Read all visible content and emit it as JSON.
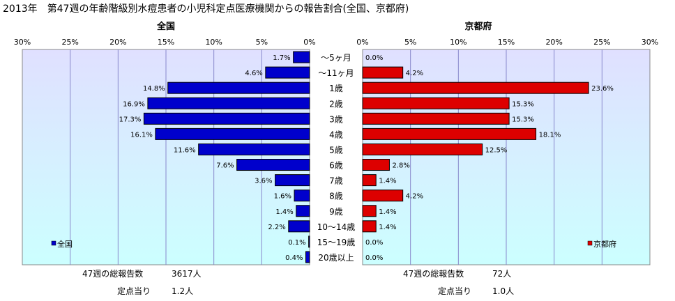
{
  "title": "2013年　第47週の年齢階級別水痘患者の小児科定点医療機関からの報告割合(全国、京都府)",
  "footer": {
    "left_total_label": "47週の総報告数",
    "left_total_value": "3617人",
    "left_per_label": "定点当り",
    "left_per_value": "1.2人",
    "right_total_label": "47週の総報告数",
    "right_total_value": "72人",
    "right_per_label": "定点当り",
    "right_per_value": "1.0人"
  },
  "colors": {
    "national_bar": "#0000cc",
    "kyoto_bar": "#dd0000",
    "plot_top": "#e0e0ff",
    "plot_bottom": "#ccffff",
    "grid": "#8888cc"
  },
  "chart_data": {
    "type": "bar",
    "categories": [
      "～5ヶ月",
      "～11ヶ月",
      "1歳",
      "2歳",
      "3歳",
      "4歳",
      "5歳",
      "6歳",
      "7歳",
      "8歳",
      "9歳",
      "10～14歳",
      "15～19歳",
      "20歳以上"
    ],
    "series": [
      {
        "name": "全国",
        "title": "全国",
        "values": [
          1.7,
          4.6,
          14.8,
          16.9,
          17.3,
          16.1,
          11.6,
          7.6,
          3.6,
          1.6,
          1.4,
          2.2,
          0.1,
          0.4
        ],
        "labels": [
          "1.7%",
          "4.6%",
          "14.8%",
          "16.9%",
          "17.3%",
          "16.1%",
          "11.6%",
          "7.6%",
          "3.6%",
          "1.6%",
          "1.4%",
          "2.2%",
          "0.1%",
          "0.4%"
        ],
        "ticks": [
          "30%",
          "25%",
          "20%",
          "15%",
          "10%",
          "5%",
          "0%"
        ]
      },
      {
        "name": "京都府",
        "title": "京都府",
        "values": [
          0.0,
          4.2,
          23.6,
          15.3,
          15.3,
          18.1,
          12.5,
          2.8,
          1.4,
          4.2,
          1.4,
          1.4,
          0.0,
          0.0
        ],
        "labels": [
          "0.0%",
          "4.2%",
          "23.6%",
          "15.3%",
          "15.3%",
          "18.1%",
          "12.5%",
          "2.8%",
          "1.4%",
          "4.2%",
          "1.4%",
          "1.4%",
          "0.0%",
          "0.0%"
        ],
        "ticks": [
          "0%",
          "5%",
          "10%",
          "15%",
          "20%",
          "25%",
          "30%"
        ]
      }
    ],
    "xlim": [
      0,
      30
    ],
    "grid": true,
    "legend_placement": "bottom-left / bottom-right"
  }
}
